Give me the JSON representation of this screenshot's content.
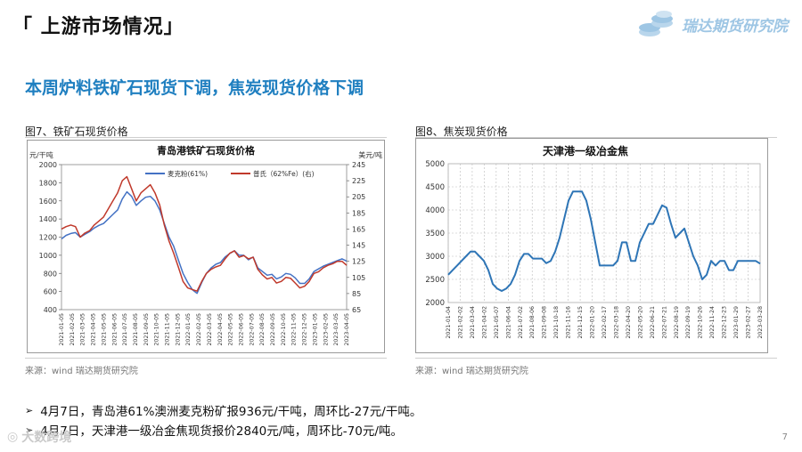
{
  "header": {
    "title": "「 上游市场情况」"
  },
  "brand": {
    "name": "瑞达期货研究院",
    "icon": "coins-icon",
    "color": "#9ec6e4"
  },
  "headline": "本周炉料铁矿石现货下调，焦炭现货价格下调",
  "figures": {
    "left": {
      "caption": "图7、铁矿石现货价格",
      "source": "来源：wind   瑞达期货研究院"
    },
    "right": {
      "caption": "图8、焦炭现货价格",
      "source": "来源：wind   瑞达期货研究院"
    }
  },
  "bullets": [
    "4月7日，青岛港61%澳洲麦克粉矿报936元/干吨，周环比-27元/干吨。",
    "4月7日，天津港一级冶金焦现货报价2840元/吨，周环比-70元/吨。"
  ],
  "page_number": "7",
  "watermark": "大数跨境",
  "chart_data": [
    {
      "type": "line",
      "title": "青岛港铁矿石现货价格",
      "ylabel_left": "元/干吨",
      "ylabel_right": "美元/吨",
      "ylim_left": [
        400,
        2000
      ],
      "yticks_left": [
        "400",
        "600",
        "800",
        "1000",
        "1200",
        "1400",
        "1600",
        "1800",
        "2000"
      ],
      "ylim_right": [
        65,
        245
      ],
      "yticks_right": [
        "65",
        "85",
        "105",
        "125",
        "145",
        "165",
        "185",
        "205",
        "225",
        "245"
      ],
      "x_ticks": [
        "2021-01-05",
        "2021-02-05",
        "2021-03-05",
        "2021-04-05",
        "2021-05-05",
        "2021-06-05",
        "2021-07-05",
        "2021-08-05",
        "2021-09-05",
        "2021-10-05",
        "2021-11-05",
        "2021-12-05",
        "2022-01-05",
        "2022-02-05",
        "2022-03-05",
        "2022-04-05",
        "2022-05-05",
        "2022-06-05",
        "2022-07-05",
        "2022-08-05",
        "2022-09-05",
        "2022-10-05",
        "2022-11-05",
        "2022-12-05",
        "2023-01-05",
        "2023-02-05",
        "2023-03-05",
        "2023-04-05"
      ],
      "series": [
        {
          "name": "麦克粉(61%)",
          "axis": "left",
          "color": "#4472c4",
          "values": [
            1180,
            1220,
            1240,
            1250,
            1200,
            1230,
            1260,
            1300,
            1330,
            1350,
            1400,
            1450,
            1500,
            1620,
            1700,
            1650,
            1550,
            1600,
            1640,
            1650,
            1600,
            1500,
            1350,
            1200,
            1100,
            950,
            800,
            700,
            620,
            580,
            700,
            800,
            860,
            900,
            920,
            980,
            1020,
            1050,
            1000,
            1000,
            950,
            980,
            860,
            820,
            780,
            790,
            740,
            760,
            800,
            790,
            750,
            690,
            690,
            740,
            820,
            850,
            880,
            900,
            920,
            940,
            960,
            936
          ]
        },
        {
          "name": "普氏（62%Fe）(右)",
          "axis": "right",
          "color": "#c0392b",
          "values": [
            165,
            168,
            170,
            168,
            155,
            160,
            163,
            170,
            175,
            180,
            190,
            200,
            210,
            225,
            230,
            215,
            200,
            210,
            215,
            220,
            210,
            195,
            170,
            150,
            135,
            118,
            100,
            92,
            90,
            88,
            100,
            110,
            115,
            118,
            120,
            128,
            135,
            138,
            130,
            132,
            128,
            130,
            115,
            108,
            103,
            105,
            98,
            100,
            105,
            104,
            98,
            92,
            94,
            100,
            110,
            112,
            117,
            120,
            122,
            125,
            125,
            120
          ]
        }
      ]
    },
    {
      "type": "line",
      "title": "天津港一级冶金焦",
      "ylim": [
        2000,
        5000
      ],
      "yticks": [
        "2000",
        "2500",
        "3000",
        "3500",
        "4000",
        "4500",
        "5000"
      ],
      "x_ticks": [
        "2021-01-04",
        "2021-02-02",
        "2021-03-04",
        "2021-04-02",
        "2021-05-07",
        "2021-06-04",
        "2021-07-02",
        "2021-08-06",
        "2021-09-08",
        "2021-10-18",
        "2021-11-16",
        "2021-12-15",
        "2022-01-20",
        "2022-02-17",
        "2022-03-18",
        "2022-04-20",
        "2022-05-20",
        "2022-06-21",
        "2022-07-21",
        "2022-08-19",
        "2022-09-19",
        "2022-10-26",
        "2022-11-24",
        "2022-12-23",
        "2023-01-29",
        "2023-02-27",
        "2023-03-28"
      ],
      "series": [
        {
          "name": "天津港一级冶金焦",
          "color": "#2e75b6",
          "values": [
            2600,
            2700,
            2800,
            2900,
            3000,
            3100,
            3100,
            3000,
            2900,
            2700,
            2400,
            2300,
            2250,
            2300,
            2400,
            2600,
            2900,
            3050,
            3050,
            2950,
            2950,
            2950,
            2850,
            2900,
            3100,
            3400,
            3800,
            4200,
            4400,
            4400,
            4400,
            4200,
            3800,
            3300,
            2800,
            2800,
            2800,
            2800,
            2900,
            3300,
            3300,
            2900,
            2900,
            3300,
            3500,
            3700,
            3700,
            3900,
            4100,
            4050,
            3700,
            3400,
            3500,
            3600,
            3300,
            3000,
            2800,
            2500,
            2600,
            2900,
            2800,
            2900,
            2900,
            2700,
            2700,
            2900,
            2900,
            2900,
            2900,
            2900,
            2840
          ]
        }
      ]
    }
  ]
}
